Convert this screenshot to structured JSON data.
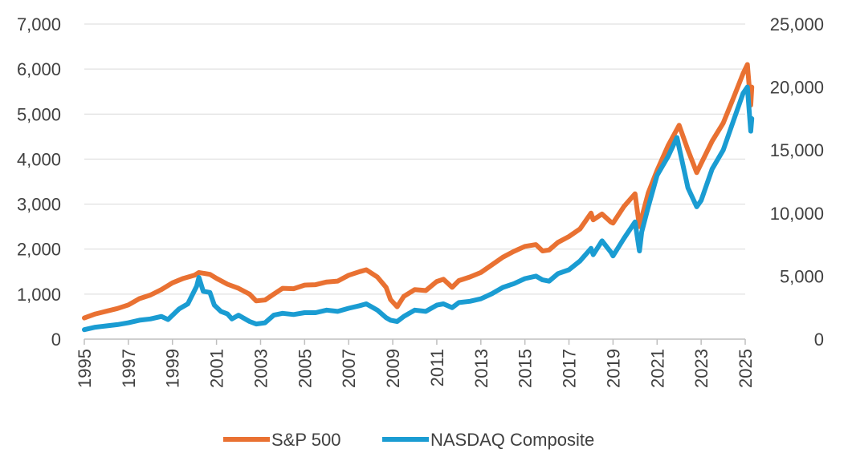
{
  "chart_data": {
    "type": "line",
    "title": "",
    "xlabel": "",
    "ylabel": "",
    "x_ticks": [
      "1995",
      "1997",
      "1999",
      "2001",
      "2003",
      "2005",
      "2007",
      "2009",
      "2011",
      "2013",
      "2015",
      "2017",
      "2019",
      "2021",
      "2023",
      "2025"
    ],
    "xlim": [
      1995,
      2025
    ],
    "y_left": {
      "ylim": [
        0,
        7000
      ],
      "ticks": [
        "0",
        "1,000",
        "2,000",
        "3,000",
        "4,000",
        "5,000",
        "6,000",
        "7,000"
      ]
    },
    "y_right": {
      "ylim": [
        0,
        25000
      ],
      "ticks": [
        "0",
        "5,000",
        "10,000",
        "15,000",
        "20,000",
        "25,000"
      ]
    },
    "grid": "horizontal",
    "legend_position": "bottom",
    "series": [
      {
        "name": "S&P 500",
        "axis": "left",
        "color": "#E97132",
        "x": [
          1995.0,
          1995.5,
          1996.0,
          1996.5,
          1997.0,
          1997.5,
          1998.0,
          1998.5,
          1999.0,
          1999.5,
          2000.0,
          2000.2,
          2000.7,
          2001.0,
          2001.5,
          2002.0,
          2002.5,
          2002.8,
          2003.2,
          2003.6,
          2004.0,
          2004.5,
          2005.0,
          2005.5,
          2006.0,
          2006.5,
          2007.0,
          2007.5,
          2007.8,
          2008.3,
          2008.7,
          2008.9,
          2009.2,
          2009.5,
          2010.0,
          2010.5,
          2011.0,
          2011.3,
          2011.7,
          2012.0,
          2012.5,
          2013.0,
          2013.5,
          2014.0,
          2014.5,
          2015.0,
          2015.5,
          2015.8,
          2016.1,
          2016.5,
          2017.0,
          2017.5,
          2018.0,
          2018.1,
          2018.5,
          2018.9,
          2019.0,
          2019.5,
          2020.0,
          2020.2,
          2020.3,
          2020.6,
          2021.0,
          2021.5,
          2022.0,
          2022.4,
          2022.8,
          2023.0,
          2023.5,
          2024.0,
          2024.5,
          2024.9,
          2025.1,
          2025.25,
          2025.3
        ],
        "values": [
          470,
          560,
          620,
          680,
          760,
          900,
          980,
          1100,
          1250,
          1350,
          1420,
          1480,
          1440,
          1350,
          1220,
          1130,
          1000,
          850,
          870,
          1000,
          1130,
          1120,
          1200,
          1210,
          1270,
          1290,
          1420,
          1500,
          1540,
          1380,
          1150,
          880,
          720,
          950,
          1100,
          1080,
          1280,
          1330,
          1150,
          1300,
          1380,
          1480,
          1650,
          1820,
          1950,
          2060,
          2100,
          1960,
          1980,
          2150,
          2280,
          2450,
          2800,
          2650,
          2780,
          2600,
          2580,
          2950,
          3230,
          2500,
          2700,
          3250,
          3750,
          4300,
          4750,
          4200,
          3700,
          3900,
          4400,
          4800,
          5400,
          5900,
          6100,
          5200,
          5600
        ]
      },
      {
        "name": "NASDAQ Composite",
        "axis": "right",
        "color": "#1A9CD2",
        "x": [
          1995.0,
          1995.5,
          1996.0,
          1996.5,
          1997.0,
          1997.5,
          1998.0,
          1998.5,
          1998.8,
          1999.3,
          1999.7,
          2000.1,
          2000.2,
          2000.4,
          2000.7,
          2000.9,
          2001.2,
          2001.5,
          2001.7,
          2002.0,
          2002.5,
          2002.8,
          2003.2,
          2003.6,
          2004.0,
          2004.5,
          2005.0,
          2005.5,
          2006.0,
          2006.5,
          2007.0,
          2007.5,
          2007.8,
          2008.3,
          2008.7,
          2008.9,
          2009.2,
          2009.5,
          2010.0,
          2010.5,
          2011.0,
          2011.3,
          2011.7,
          2012.0,
          2012.5,
          2013.0,
          2013.5,
          2014.0,
          2014.5,
          2015.0,
          2015.5,
          2015.8,
          2016.1,
          2016.5,
          2017.0,
          2017.5,
          2018.0,
          2018.1,
          2018.5,
          2018.9,
          2019.0,
          2019.5,
          2020.0,
          2020.2,
          2020.3,
          2020.6,
          2021.0,
          2021.5,
          2021.9,
          2022.4,
          2022.8,
          2023.0,
          2023.5,
          2024.0,
          2024.5,
          2024.9,
          2025.1,
          2025.25,
          2025.3
        ],
        "values": [
          750,
          950,
          1050,
          1150,
          1300,
          1500,
          1600,
          1800,
          1550,
          2400,
          2800,
          4200,
          4900,
          3800,
          3700,
          2700,
          2200,
          2000,
          1600,
          1900,
          1400,
          1200,
          1300,
          1900,
          2050,
          1950,
          2100,
          2100,
          2300,
          2200,
          2450,
          2650,
          2800,
          2300,
          1700,
          1500,
          1400,
          1800,
          2300,
          2200,
          2700,
          2800,
          2500,
          2900,
          3000,
          3200,
          3600,
          4100,
          4400,
          4800,
          5000,
          4700,
          4600,
          5200,
          5500,
          6200,
          7200,
          6700,
          7800,
          6900,
          6600,
          8000,
          9300,
          7000,
          8500,
          10500,
          13000,
          14500,
          16000,
          12000,
          10500,
          11000,
          13500,
          15000,
          17500,
          19500,
          20000,
          16500,
          17500
        ]
      }
    ]
  }
}
